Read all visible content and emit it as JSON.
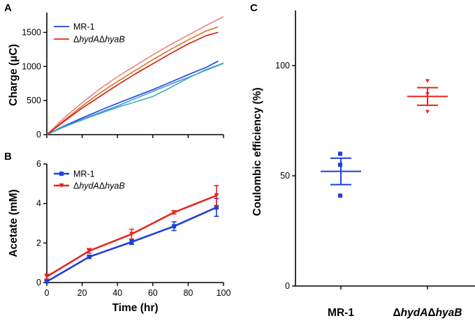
{
  "figure": {
    "panels": [
      "A",
      "B",
      "C"
    ]
  },
  "colors": {
    "blue": "#1f3fd8",
    "red": "#e8251c",
    "light_blue": "#3a9bd6",
    "teal": "#45a8b8",
    "orange": "#d9781c",
    "salmon": "#f08080",
    "dark_red": "#d41616",
    "axis": "#000000"
  },
  "chart_data": [
    {
      "panel": "A",
      "type": "line",
      "title": "",
      "xlabel": "",
      "ylabel_prefix": "Charge (",
      "ylabel_mu": "μ",
      "ylabel_suffix": "C)",
      "xlim": [
        0,
        100
      ],
      "ylim": [
        0,
        1750
      ],
      "xticks": [
        0,
        20,
        40,
        60,
        80,
        100
      ],
      "yticks": [
        0,
        500,
        1000,
        1500
      ],
      "legend": [
        {
          "label": "MR-1",
          "italic": false,
          "color_key": "blue"
        },
        {
          "label": "ΔhydAΔhyaB",
          "delta_positions": [
            0,
            5
          ],
          "color_key": "red"
        }
      ],
      "series": [
        {
          "name": "MR-1 replicate 1",
          "group": "MR-1",
          "color_key": "blue",
          "x": [
            0,
            10,
            20,
            30,
            40,
            50,
            60,
            70,
            80,
            90,
            97
          ],
          "y": [
            0,
            130,
            245,
            355,
            460,
            560,
            660,
            770,
            880,
            985,
            1080
          ]
        },
        {
          "name": "MR-1 replicate 2",
          "group": "MR-1",
          "color_key": "light_blue",
          "x": [
            0,
            10,
            20,
            30,
            40,
            50,
            60,
            70,
            80,
            90,
            100
          ],
          "y": [
            0,
            120,
            225,
            325,
            420,
            530,
            635,
            740,
            840,
            945,
            1045
          ]
        },
        {
          "name": "MR-1 replicate 3",
          "group": "MR-1",
          "color_key": "teal",
          "x": [
            0,
            10,
            20,
            30,
            40,
            50,
            60,
            70,
            80,
            90,
            100
          ],
          "y": [
            0,
            115,
            215,
            310,
            400,
            480,
            560,
            690,
            830,
            955,
            1050
          ]
        },
        {
          "name": "ΔhydAΔhyaB replicate 1",
          "group": "ΔhydAΔhyaB",
          "color_key": "salmon",
          "x": [
            0,
            10,
            20,
            30,
            40,
            50,
            60,
            70,
            80,
            90,
            100
          ],
          "y": [
            0,
            250,
            470,
            670,
            850,
            1010,
            1170,
            1320,
            1460,
            1600,
            1730
          ]
        },
        {
          "name": "ΔhydAΔhyaB replicate 2",
          "group": "ΔhydAΔhyaB",
          "color_key": "orange",
          "x": [
            0,
            10,
            20,
            30,
            40,
            50,
            60,
            70,
            80,
            90,
            97
          ],
          "y": [
            0,
            215,
            420,
            610,
            780,
            940,
            1100,
            1250,
            1390,
            1520,
            1580
          ]
        },
        {
          "name": "ΔhydAΔhyaB replicate 3",
          "group": "ΔhydAΔhyaB",
          "color_key": "dark_red",
          "x": [
            0,
            10,
            20,
            30,
            40,
            50,
            60,
            70,
            80,
            90,
            97
          ],
          "y": [
            0,
            200,
            390,
            560,
            730,
            890,
            1040,
            1190,
            1330,
            1450,
            1500
          ]
        }
      ]
    },
    {
      "panel": "B",
      "type": "line",
      "title": "",
      "xlabel": "Time (hr)",
      "ylabel": "Acetate (mM)",
      "xlim": [
        0,
        100
      ],
      "ylim": [
        0,
        6
      ],
      "xticks": [
        0,
        20,
        40,
        60,
        80,
        100
      ],
      "yticks": [
        0,
        2,
        4,
        6
      ],
      "legend": [
        {
          "label": "MR-1",
          "color_key": "blue",
          "marker": "square"
        },
        {
          "label": "ΔhydAΔhyaB",
          "delta_positions": [
            0,
            5
          ],
          "color_key": "red",
          "marker": "triangle-down"
        }
      ],
      "series": [
        {
          "name": "MR-1",
          "color_key": "blue",
          "marker": "square",
          "x": [
            0,
            24,
            48,
            72,
            96
          ],
          "y": [
            0.05,
            1.3,
            2.05,
            2.85,
            3.8
          ],
          "err": [
            0.05,
            0.08,
            0.12,
            0.22,
            0.45
          ]
        },
        {
          "name": "ΔhydAΔhyaB",
          "color_key": "red",
          "marker": "triangle-down",
          "x": [
            0,
            24,
            48,
            72,
            96
          ],
          "y": [
            0.3,
            1.6,
            2.45,
            3.55,
            4.4
          ],
          "err": [
            0.12,
            0.12,
            0.25,
            0.08,
            0.5
          ]
        }
      ]
    },
    {
      "panel": "C",
      "type": "scatter",
      "title": "",
      "xlabel": "",
      "ylabel": "Coulombic efficiency (%)",
      "ylim": [
        0,
        125
      ],
      "yticks": [
        0,
        50,
        100
      ],
      "categories": [
        {
          "label": "MR-1",
          "color_key": "blue",
          "marker": "square",
          "points": [
            60,
            55,
            41
          ],
          "mean": 52,
          "err": 6
        },
        {
          "label": "ΔhydAΔhyaB",
          "delta_positions": [
            0,
            5
          ],
          "color_key": "red",
          "marker": "triangle-down",
          "points": [
            93,
            87,
            79
          ],
          "mean": 86,
          "err": 4
        }
      ]
    }
  ]
}
